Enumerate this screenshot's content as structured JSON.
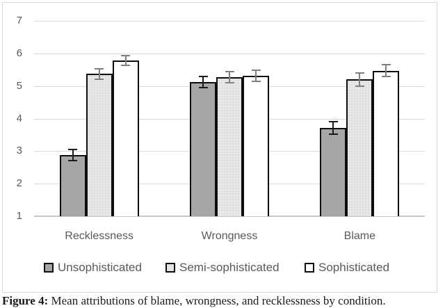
{
  "figure": {
    "background": "#ffffff",
    "border_color": "#d9d9d9",
    "gridline_color": "#d9d9d9",
    "axis_line_color": "#c6c6c6",
    "text_color": "#595959",
    "bar_border_color": "#0d0d0d"
  },
  "caption": {
    "label": "Figure 4:",
    "rest": " Mean attributions of blame, wrongness, and recklessness by condition."
  },
  "chart_data": {
    "type": "bar",
    "title": "",
    "xlabel": "",
    "ylabel": "",
    "categories": [
      "Recklessness",
      "Wrongness",
      "Blame"
    ],
    "series": [
      {
        "name": "Unsophisticated",
        "fill": "#a6a6a6",
        "dotted": false,
        "values": [
          2.88,
          5.12,
          3.71
        ],
        "errors": [
          0.18,
          0.18,
          0.19
        ],
        "error_color": "#1a1a1a"
      },
      {
        "name": "Semi-sophisticated",
        "fill": "#e9e8e8",
        "dotted": true,
        "values": [
          5.37,
          5.28,
          5.2
        ],
        "errors": [
          0.16,
          0.17,
          0.2
        ],
        "error_color": "#7f7f7f"
      },
      {
        "name": "Sophisticated",
        "fill": "#ffffff",
        "dotted": false,
        "values": [
          5.78,
          5.32,
          5.47
        ],
        "errors": [
          0.15,
          0.17,
          0.18
        ],
        "error_color": "#7f7f7f"
      }
    ],
    "y_axis": {
      "min": 1,
      "max": 7,
      "tick_step": 1,
      "ticks": [
        1,
        2,
        3,
        4,
        5,
        6,
        7
      ]
    },
    "grid": true,
    "legend_position": "bottom",
    "error_bars": true
  }
}
